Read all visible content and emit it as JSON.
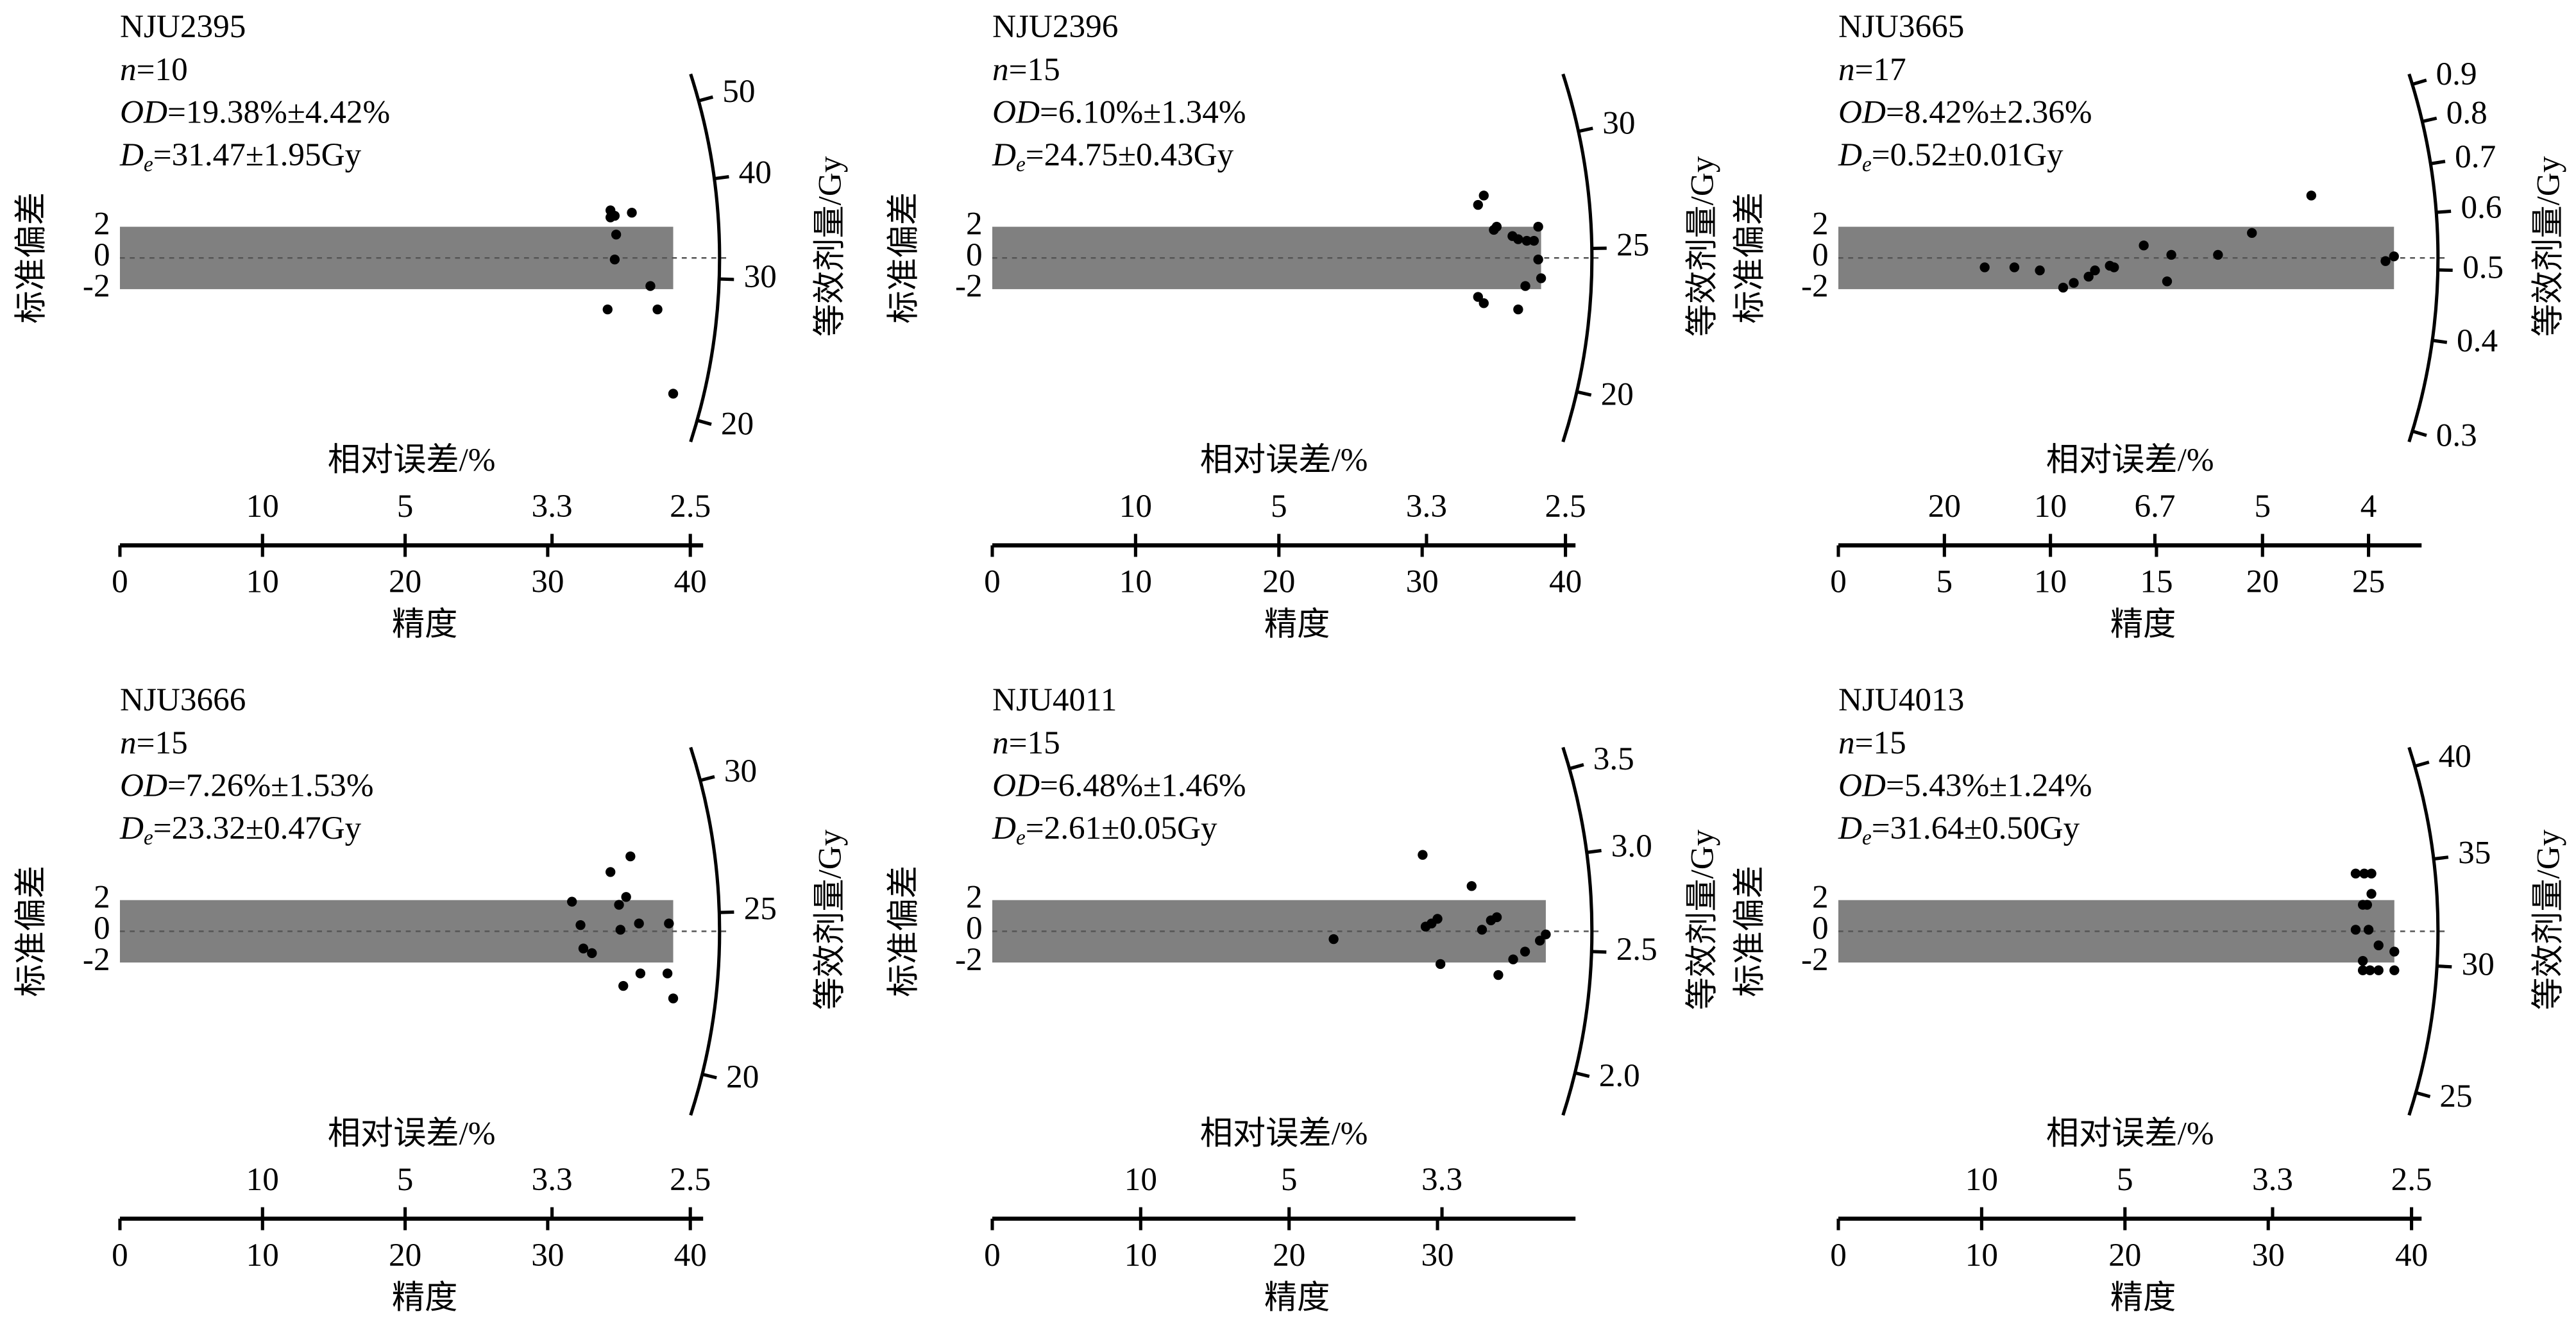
{
  "chart_data": [
    {
      "type": "radial",
      "title": "NJU2395",
      "n": {
        "symbol": "n",
        "text": "=10"
      },
      "od": {
        "symbol": "OD",
        "text": "=19.38%±4.42%"
      },
      "de": {
        "symbol": "D",
        "subscript": "e",
        "text": "=31.47±1.95Gy"
      },
      "y_label": "标准偏差",
      "x_label": "精度",
      "x2_label": "相对误差/%",
      "z_label": "等效剂量/Gy",
      "color": "#000000",
      "band_color": "#808080",
      "xlim": [
        0,
        40.9
      ],
      "xticks": [
        0,
        10,
        20,
        30,
        40
      ],
      "x2ticks": [
        10,
        5,
        3.3,
        2.5
      ],
      "ylim": [
        -12,
        12
      ],
      "yticks": [
        2,
        0,
        -2
      ],
      "zlim": [
        18.8,
        54
      ],
      "zticks": [
        20,
        30,
        40,
        50
      ],
      "x": [
        34.4,
        34.4,
        34.7,
        35.9,
        34.8,
        34.7,
        34.2,
        37.2,
        37.7,
        38.8
      ],
      "values": [
        3.05,
        2.6,
        2.7,
        2.9,
        1.5,
        -0.1,
        -3.3,
        -1.8,
        -3.3,
        -8.7
      ]
    },
    {
      "type": "radial",
      "title": "NJU2396",
      "n": {
        "symbol": "n",
        "text": "=15"
      },
      "od": {
        "symbol": "OD",
        "text": "=6.10%±1.34%"
      },
      "de": {
        "symbol": "D",
        "subscript": "e",
        "text": "=24.75±0.43Gy"
      },
      "y_label": "标准偏差",
      "x_label": "精度",
      "x2_label": "相对误差/%",
      "z_label": "等效剂量/Gy",
      "color": "#000000",
      "band_color": "#808080",
      "xlim": [
        0,
        40.7
      ],
      "xticks": [
        0,
        10,
        20,
        30,
        40
      ],
      "x2ticks": [
        10,
        5,
        3.3,
        2.5
      ],
      "ylim": [
        -12,
        12
      ],
      "yticks": [
        2,
        0,
        -2
      ],
      "zlim": [
        18.5,
        32.8
      ],
      "zticks": [
        20,
        25,
        30
      ],
      "x": [
        34.3,
        33.9,
        35.0,
        35.2,
        36.3,
        36.7,
        38.1,
        38.1,
        38.3,
        37.2,
        36.7,
        33.9,
        34.3,
        37.8,
        37.3
      ],
      "values": [
        4.0,
        3.4,
        1.8,
        2.0,
        1.4,
        1.2,
        2.0,
        -0.1,
        -1.3,
        -1.8,
        -3.3,
        -2.5,
        -2.9,
        1.1,
        1.1
      ]
    },
    {
      "type": "radial",
      "title": "NJU3665",
      "n": {
        "symbol": "n",
        "text": "=17"
      },
      "od": {
        "symbol": "OD",
        "text": "=8.42%±2.36%"
      },
      "de": {
        "symbol": "D",
        "subscript": "e",
        "text": "=0.52±0.01Gy"
      },
      "y_label": "标准偏差",
      "x_label": "精度",
      "x2_label": "相对误差/%",
      "z_label": "等效剂量/Gy",
      "color": "#000000",
      "band_color": "#808080",
      "xlim": [
        0,
        27.5
      ],
      "xticks": [
        0,
        5,
        10,
        15,
        20,
        25
      ],
      "x2ticks": [
        20,
        10,
        6.7,
        5,
        4
      ],
      "ylim": [
        -12,
        12
      ],
      "yticks": [
        2,
        0,
        -2
      ],
      "zlim": [
        0.29,
        0.93
      ],
      "zticks": [
        0.3,
        0.4,
        0.5,
        0.6,
        0.7,
        0.8,
        0.9
      ],
      "x": [
        6.9,
        8.3,
        9.5,
        10.6,
        11.1,
        11.8,
        12.1,
        12.8,
        13.0,
        14.4,
        15.5,
        15.7,
        17.9,
        19.5,
        22.3,
        25.8,
        26.2
      ],
      "values": [
        -0.6,
        -0.6,
        -0.8,
        -1.9,
        -1.6,
        -1.2,
        -0.8,
        -0.5,
        -0.6,
        0.8,
        -1.5,
        0.2,
        0.2,
        1.6,
        4.0,
        -0.2,
        0.1
      ]
    },
    {
      "type": "radial",
      "title": "NJU3666",
      "n": {
        "symbol": "n",
        "text": "=15"
      },
      "od": {
        "symbol": "OD",
        "text": "=7.26%±1.53%"
      },
      "de": {
        "symbol": "D",
        "subscript": "e",
        "text": "=23.32±0.47Gy"
      },
      "y_label": "标准偏差",
      "x_label": "精度",
      "x2_label": "相对误差/%",
      "z_label": "等效剂量/Gy",
      "color": "#000000",
      "band_color": "#808080",
      "xlim": [
        0,
        40.9
      ],
      "xticks": [
        0,
        10,
        20,
        30,
        40
      ],
      "x2ticks": [
        10,
        5,
        3.3,
        2.5
      ],
      "ylim": [
        -12,
        12
      ],
      "yticks": [
        2,
        0,
        -2
      ],
      "zlim": [
        18.9,
        31.4
      ],
      "zticks": [
        20,
        25,
        30
      ],
      "x": [
        31.7,
        32.3,
        32.5,
        33.1,
        34.4,
        35.0,
        35.1,
        35.5,
        35.3,
        35.8,
        36.4,
        36.5,
        38.5,
        38.4,
        38.8
      ],
      "values": [
        1.9,
        0.4,
        -1.1,
        -1.4,
        3.8,
        1.7,
        0.1,
        2.2,
        -3.5,
        4.8,
        0.5,
        -2.7,
        0.5,
        -2.7,
        -4.3
      ]
    },
    {
      "type": "radial",
      "title": "NJU4011",
      "n": {
        "symbol": "n",
        "text": "=15"
      },
      "od": {
        "symbol": "OD",
        "text": "=6.48%±1.46%"
      },
      "de": {
        "symbol": "D",
        "subscript": "e",
        "text": "=2.61±0.05Gy"
      },
      "y_label": "标准偏差",
      "x_label": "精度",
      "x2_label": "相对误差/%",
      "z_label": "等效剂量/Gy",
      "color": "#000000",
      "band_color": "#808080",
      "xlim": [
        0,
        39.3
      ],
      "xticks": [
        0,
        10,
        20,
        30
      ],
      "x2ticks": [
        10,
        5,
        3.3
      ],
      "ylim": [
        -12,
        12
      ],
      "yticks": [
        2,
        0,
        -2
      ],
      "zlim": [
        1.85,
        3.64
      ],
      "zticks": [
        {
          "value": 2,
          "label": "2.0"
        },
        2.5,
        {
          "value": 3,
          "label": "3.0"
        },
        3.5
      ],
      "x": [
        23.0,
        29.0,
        29.6,
        30.0,
        30.2,
        32.3,
        33.0,
        33.6,
        34.0,
        34.1,
        35.1,
        35.9,
        36.9,
        37.3,
        29.2
      ],
      "values": [
        -0.5,
        4.9,
        0.5,
        0.8,
        -2.1,
        2.9,
        0.1,
        0.7,
        0.9,
        -2.8,
        -1.8,
        -1.3,
        -0.6,
        -0.2,
        0.3
      ]
    },
    {
      "type": "radial",
      "title": "NJU4013",
      "n": {
        "symbol": "n",
        "text": "=15"
      },
      "od": {
        "symbol": "OD",
        "text": "=5.43%±1.24%"
      },
      "de": {
        "symbol": "D",
        "subscript": "e",
        "text": "=31.64±0.50Gy"
      },
      "y_label": "标准偏差",
      "x_label": "精度",
      "x2_label": "相对误差/%",
      "z_label": "等效剂量/Gy",
      "color": "#000000",
      "band_color": "#808080",
      "xlim": [
        0,
        40.7
      ],
      "xticks": [
        0,
        10,
        20,
        30,
        40
      ],
      "x2ticks": [
        10,
        5,
        3.3,
        2.5
      ],
      "ylim": [
        -12,
        12
      ],
      "yticks": [
        2,
        0,
        -2
      ],
      "zlim": [
        24.2,
        41.1
      ],
      "zticks": [
        25,
        30,
        35,
        40
      ],
      "x": [
        36.1,
        36.7,
        37.2,
        36.6,
        36.9,
        37.2,
        36.1,
        37.0,
        37.7,
        36.6,
        37.1,
        37.7,
        36.6,
        38.8,
        38.8
      ],
      "values": [
        3.7,
        3.7,
        3.7,
        1.7,
        1.7,
        2.4,
        0.1,
        0.1,
        -0.9,
        -1.9,
        -2.5,
        -2.5,
        -2.5,
        -1.3,
        -2.5
      ]
    }
  ]
}
